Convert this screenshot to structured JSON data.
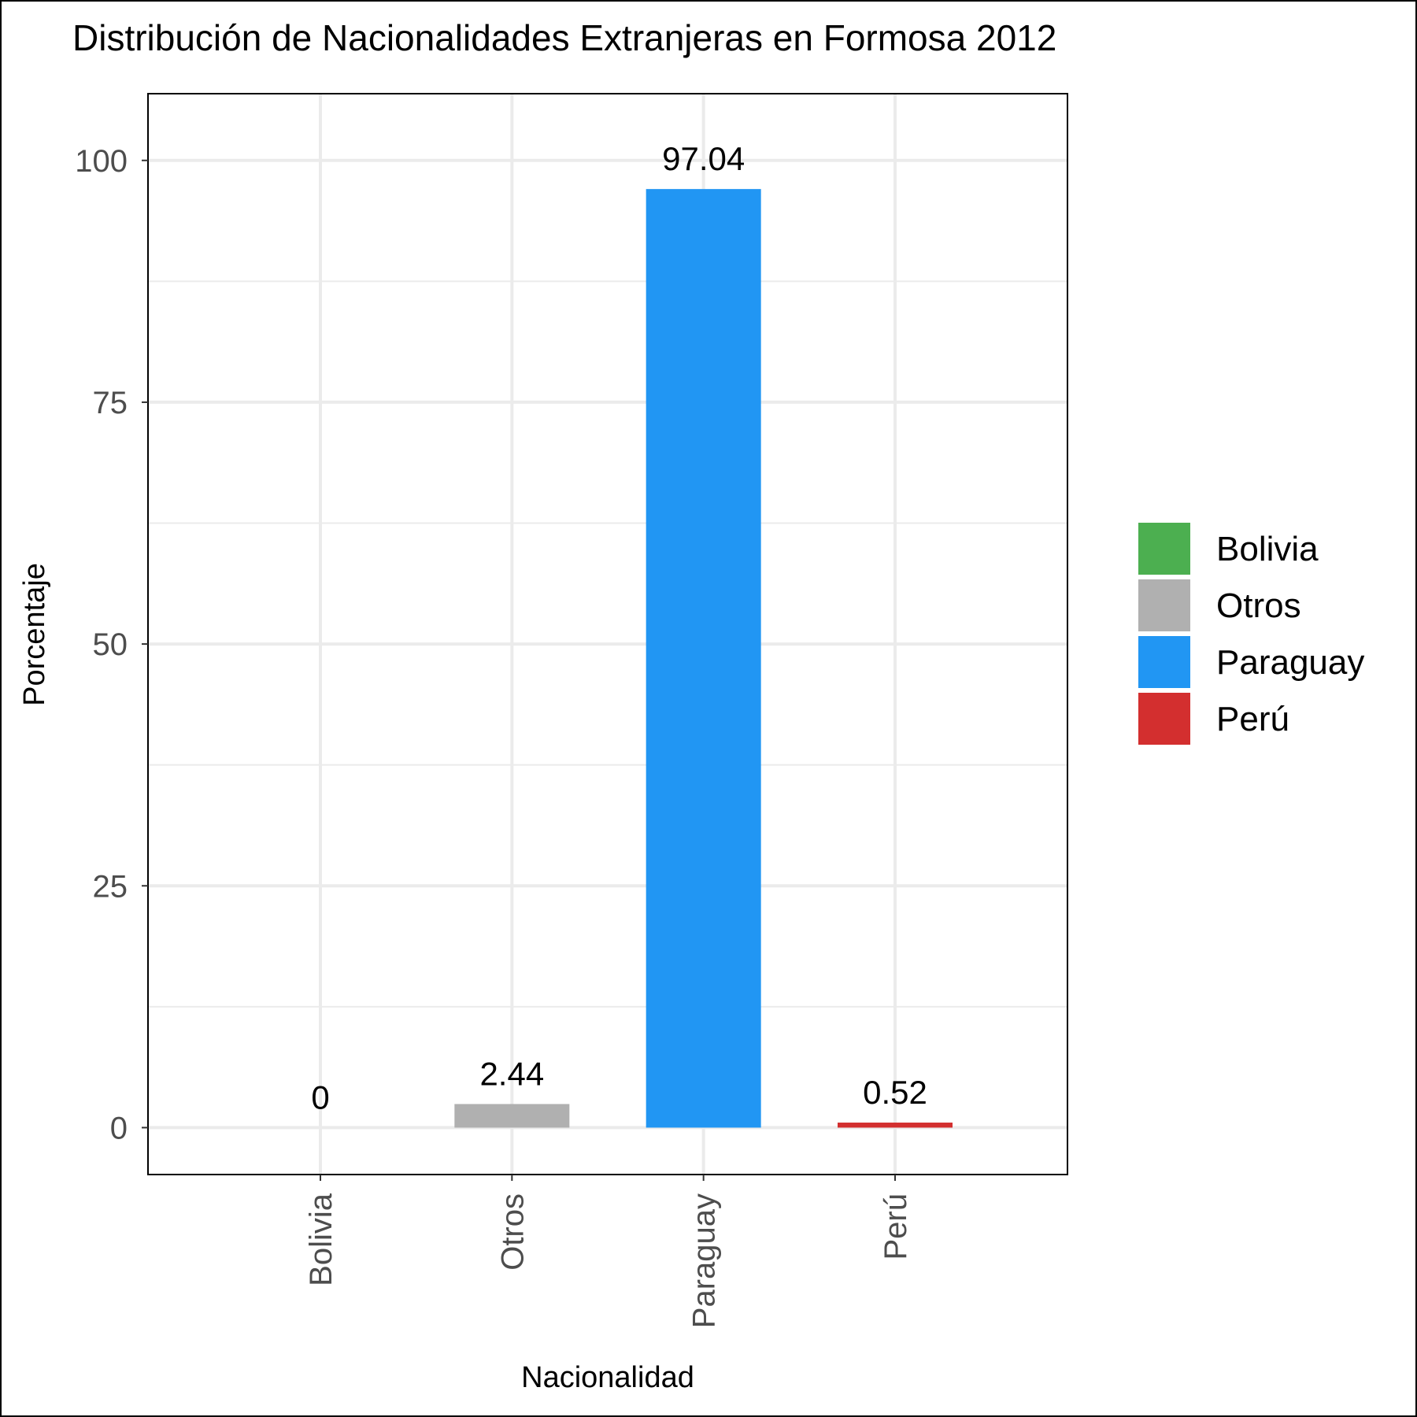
{
  "chart_data": {
    "type": "bar",
    "title": "Distribución de Nacionalidades Extranjeras en Formosa 2012",
    "xlabel": "Nacionalidad",
    "ylabel": "Porcentaje",
    "categories": [
      "Bolivia",
      "Otros",
      "Paraguay",
      "Perú"
    ],
    "values": [
      0,
      2.44,
      97.04,
      0.52
    ],
    "value_labels": [
      "0",
      "2.44",
      "97.04",
      "0.52"
    ],
    "colors": [
      "#4caf50",
      "#b0b0b0",
      "#2196f3",
      "#d32f2f"
    ],
    "ylim": [
      -4.85,
      106.9
    ],
    "yticks": [
      0,
      25,
      50,
      75,
      100
    ],
    "ytick_labels": [
      "0",
      "25",
      "50",
      "75",
      "100"
    ],
    "grid": true,
    "legend": {
      "placement": "right",
      "entries": [
        "Bolivia",
        "Otros",
        "Paraguay",
        "Perú"
      ]
    }
  }
}
